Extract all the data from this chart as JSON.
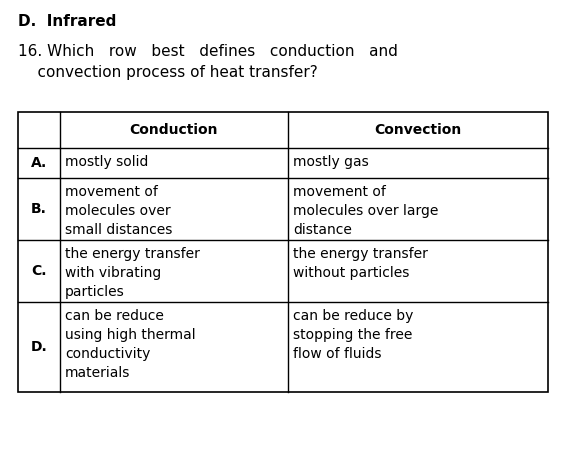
{
  "title_d": "D.  Infrared",
  "question": "16. Which   row   best   defines   conduction   and\n    convection process of heat transfer?",
  "col_headers": [
    "",
    "Conduction",
    "Convection"
  ],
  "rows": [
    [
      "A.",
      "mostly solid",
      "mostly gas"
    ],
    [
      "B.",
      "movement of\nmolecules over\nsmall distances",
      "movement of\nmolecules over large\ndistance"
    ],
    [
      "C.",
      "the energy transfer\nwith vibrating\nparticles",
      "the energy transfer\nwithout particles"
    ],
    [
      "D.",
      "can be reduce\nusing high thermal\nconductivity\nmaterials",
      "can be reduce by\nstopping the free\nflow of fluids"
    ]
  ],
  "bg_color": "#ffffff",
  "text_color": "#000000",
  "fontsize_title": 11,
  "fontsize_question": 11,
  "fontsize_table": 10
}
